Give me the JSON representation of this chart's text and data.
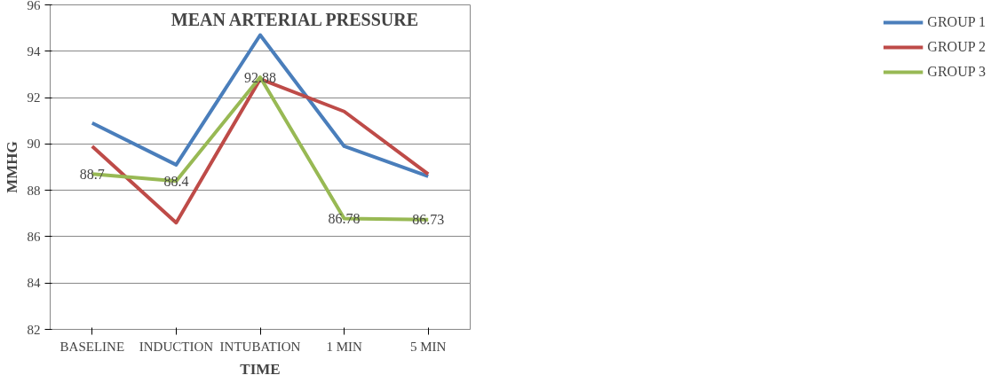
{
  "chart_data": {
    "type": "line",
    "title": "MEAN ARTERIAL  PRESSURE",
    "xlabel": "TIME",
    "ylabel": "MMHG",
    "categories": [
      "BASELINE",
      "INDUCTION",
      "INTUBATION",
      "1 MIN",
      "5 MIN"
    ],
    "series": [
      {
        "name": "GROUP 1",
        "color": "#4a7ebb",
        "values": [
          90.9,
          89.1,
          94.7,
          89.9,
          88.6
        ]
      },
      {
        "name": "GROUP 2",
        "color": "#be4b48",
        "values": [
          89.9,
          86.6,
          92.8,
          91.4,
          88.7
        ]
      },
      {
        "name": "GROUP 3",
        "color": "#98b954",
        "values": [
          88.7,
          88.4,
          92.88,
          86.78,
          86.73
        ],
        "value_labels": [
          "88.7",
          "88.4",
          "92.88",
          "86.78",
          "86.73"
        ]
      }
    ],
    "ylim": [
      82,
      96
    ],
    "yticks": [
      82,
      84,
      86,
      88,
      90,
      92,
      94,
      96
    ],
    "grid": "y",
    "legend": "right",
    "marker": "none",
    "line_style": "solid"
  }
}
